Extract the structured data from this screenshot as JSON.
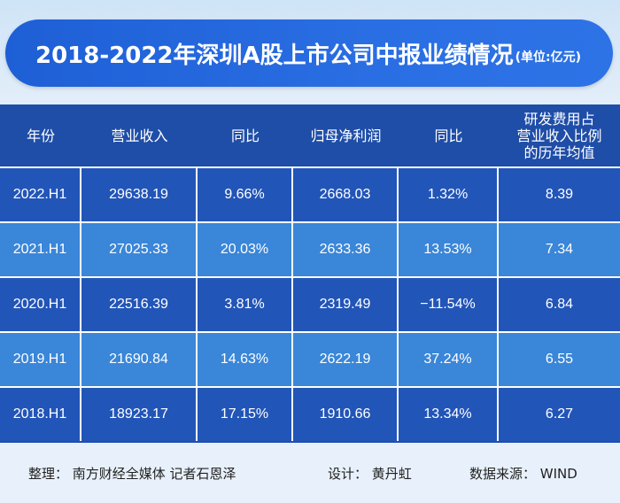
{
  "title": {
    "main": "2018-2022年深圳A股上市公司中报业绩情况",
    "unit": "(单位:亿元)"
  },
  "table": {
    "headers": [
      "年份",
      "营业收入",
      "同比",
      "归母净利润",
      "同比",
      "研发费用占\n营业收入比例\n的历年均值"
    ],
    "rows": [
      {
        "year": "2022.H1",
        "revenue": "29638.19",
        "revenue_yoy": "9.66%",
        "net_profit": "2668.03",
        "profit_yoy": "1.32%",
        "rd_ratio": "8.39"
      },
      {
        "year": "2021.H1",
        "revenue": "27025.33",
        "revenue_yoy": "20.03%",
        "net_profit": "2633.36",
        "profit_yoy": "13.53%",
        "rd_ratio": "7.34"
      },
      {
        "year": "2020.H1",
        "revenue": "22516.39",
        "revenue_yoy": "3.81%",
        "net_profit": "2319.49",
        "profit_yoy": "−11.54%",
        "rd_ratio": "6.84"
      },
      {
        "year": "2019.H1",
        "revenue": "21690.84",
        "revenue_yoy": "14.63%",
        "net_profit": "2622.19",
        "profit_yoy": "37.24%",
        "rd_ratio": "6.55"
      },
      {
        "year": "2018.H1",
        "revenue": "18923.17",
        "revenue_yoy": "17.15%",
        "net_profit": "1910.66",
        "profit_yoy": "13.34%",
        "rd_ratio": "6.27"
      }
    ]
  },
  "footer": {
    "compiled_by": "整理： 南方财经全媒体 记者石恩泽",
    "design": "设计： 黄丹虹",
    "source": "数据来源： WIND"
  },
  "colors": {
    "title_bg": "#2266dd",
    "header_bg": "#1f4ea8",
    "row_dark": "#2255b8",
    "row_light": "#3a86d8"
  }
}
